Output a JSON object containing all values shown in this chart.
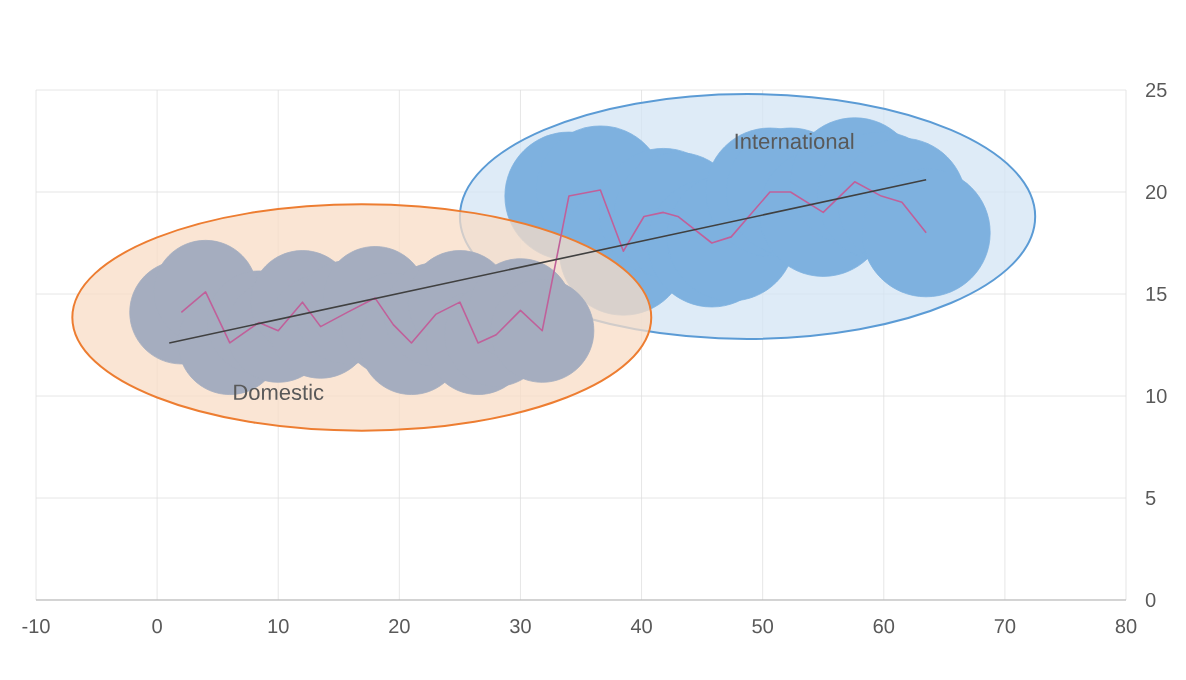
{
  "chart_data": {
    "type": "bubble",
    "xlim": [
      -10,
      80
    ],
    "ylim": [
      0,
      25
    ],
    "xticks": [
      -10,
      0,
      10,
      20,
      30,
      40,
      50,
      60,
      70,
      80
    ],
    "yticks": [
      0,
      5,
      10,
      15,
      20,
      25
    ],
    "grid": true,
    "series": [
      {
        "color": "#a5adbf",
        "x": [
          2,
          4,
          6,
          8.4,
          10,
          12,
          13.5,
          15.7,
          18,
          19.5,
          21,
          23,
          25,
          26.5,
          28,
          30,
          31.8
        ],
        "values": [
          14.1,
          15.1,
          12.6,
          13.6,
          13.2,
          14.6,
          13.4,
          14.1,
          14.8,
          13.5,
          12.6,
          14.0,
          14.6,
          12.6,
          13.0,
          14.2,
          13.2
        ],
        "sizes": [
          0.65,
          0.65,
          0.65,
          0.65,
          0.65,
          0.65,
          0.65,
          0.65,
          0.65,
          0.65,
          0.65,
          0.65,
          0.65,
          0.65,
          0.65,
          0.65,
          0.65
        ]
      },
      {
        "color": "#7eb1df",
        "x": [
          34,
          36.6,
          38.5,
          41.8,
          43,
          45.8,
          47.4,
          50.6,
          52.3,
          55,
          57.6,
          59.8,
          61.5,
          63.5
        ],
        "values": [
          19.8,
          20.1,
          17.1,
          19,
          18.8,
          17.5,
          17.8,
          20,
          20,
          19,
          20.5,
          19.8,
          19.5,
          18
        ],
        "sizes": [
          1,
          1,
          1,
          1,
          1,
          1,
          1,
          1,
          1,
          1,
          1,
          1,
          1,
          1
        ]
      },
      {
        "type": "line",
        "color": "#c0609a",
        "x": [
          2,
          4,
          6,
          8.4,
          10,
          12,
          13.5,
          15.7,
          18,
          19.5,
          21,
          23,
          25,
          26.5,
          28,
          30,
          31.8,
          34,
          36.6,
          38.5,
          40.2,
          41.8,
          43,
          45.8,
          47.4,
          50.6,
          52.3,
          55,
          57.6,
          59.8,
          61.5,
          63.5
        ],
        "values": [
          14.1,
          15.1,
          12.6,
          13.6,
          13.2,
          14.6,
          13.4,
          14.1,
          14.8,
          13.5,
          12.6,
          14.0,
          14.6,
          12.6,
          13.0,
          14.2,
          13.2,
          19.8,
          20.1,
          17.1,
          18.8,
          19,
          18.8,
          17.5,
          17.8,
          20,
          20,
          19,
          20.5,
          19.8,
          19.5,
          18
        ]
      },
      {
        "type": "line",
        "color": "#404040",
        "x": [
          1,
          63.5
        ],
        "values": [
          12.6,
          20.6
        ]
      }
    ],
    "annotations": [
      {
        "text": "Domestic",
        "x": 10,
        "y": 10.2
      },
      {
        "text": "International",
        "x": 52.6,
        "y": 22.5
      }
    ]
  }
}
